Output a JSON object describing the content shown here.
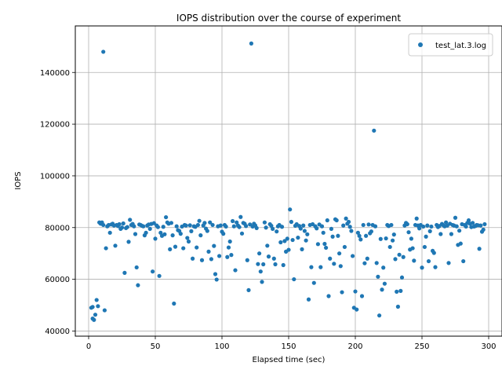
{
  "chart_data": {
    "type": "scatter",
    "title": "IOPS distribution over the course of experiment",
    "xlabel": "Elapsed time (sec)",
    "ylabel": "IOPS",
    "xlim": [
      -10,
      310
    ],
    "ylim": [
      38000,
      158000
    ],
    "xticks": [
      0,
      50,
      100,
      150,
      200,
      250,
      300
    ],
    "yticks": [
      40000,
      60000,
      80000,
      100000,
      120000,
      140000
    ],
    "grid": true,
    "legend_position": "top-right",
    "color": "#1f77b4",
    "series": [
      {
        "name": "test_lat.3.log",
        "points": [
          [
            2,
            49000
          ],
          [
            3,
            49300
          ],
          [
            3,
            44800
          ],
          [
            4,
            44300
          ],
          [
            5,
            46300
          ],
          [
            6,
            52000
          ],
          [
            7,
            49600
          ],
          [
            8,
            82000
          ],
          [
            9,
            81500
          ],
          [
            10,
            82000
          ],
          [
            11,
            81000
          ],
          [
            11,
            148000
          ],
          [
            12,
            48000
          ],
          [
            13,
            72000
          ],
          [
            14,
            80500
          ],
          [
            15,
            81000
          ],
          [
            16,
            78000
          ],
          [
            17,
            81200
          ],
          [
            18,
            81500
          ],
          [
            19,
            80800
          ],
          [
            20,
            73000
          ],
          [
            21,
            81000
          ],
          [
            22,
            80600
          ],
          [
            23,
            81300
          ],
          [
            24,
            79500
          ],
          [
            25,
            80000
          ],
          [
            26,
            81600
          ],
          [
            27,
            62500
          ],
          [
            28,
            79800
          ],
          [
            29,
            80200
          ],
          [
            30,
            74500
          ],
          [
            31,
            83000
          ],
          [
            32,
            81000
          ],
          [
            33,
            81400
          ],
          [
            34,
            80500
          ],
          [
            35,
            77500
          ],
          [
            36,
            64600
          ],
          [
            37,
            57700
          ],
          [
            38,
            81200
          ],
          [
            39,
            81000
          ],
          [
            40,
            80700
          ],
          [
            41,
            80500
          ],
          [
            42,
            77000
          ],
          [
            43,
            78000
          ],
          [
            44,
            80800
          ],
          [
            45,
            81200
          ],
          [
            46,
            79500
          ],
          [
            47,
            81400
          ],
          [
            48,
            63000
          ],
          [
            49,
            81700
          ],
          [
            50,
            75700
          ],
          [
            51,
            80800
          ],
          [
            52,
            80200
          ],
          [
            53,
            61300
          ],
          [
            54,
            78000
          ],
          [
            55,
            76800
          ],
          [
            56,
            80300
          ],
          [
            57,
            77400
          ],
          [
            58,
            84000
          ],
          [
            59,
            82000
          ],
          [
            60,
            81500
          ],
          [
            61,
            71600
          ],
          [
            62,
            81800
          ],
          [
            63,
            77000
          ],
          [
            64,
            50600
          ],
          [
            65,
            72600
          ],
          [
            66,
            80500
          ],
          [
            67,
            79000
          ],
          [
            68,
            78700
          ],
          [
            69,
            77600
          ],
          [
            70,
            80400
          ],
          [
            71,
            72000
          ],
          [
            72,
            81000
          ],
          [
            73,
            80800
          ],
          [
            74,
            76000
          ],
          [
            75,
            74600
          ],
          [
            76,
            80900
          ],
          [
            77,
            78600
          ],
          [
            78,
            68000
          ],
          [
            79,
            80500
          ],
          [
            80,
            80300
          ],
          [
            81,
            72300
          ],
          [
            82,
            81000
          ],
          [
            83,
            82600
          ],
          [
            84,
            77000
          ],
          [
            85,
            67400
          ],
          [
            86,
            80800
          ],
          [
            87,
            81800
          ],
          [
            88,
            79600
          ],
          [
            89,
            78700
          ],
          [
            90,
            70700
          ],
          [
            91,
            82000
          ],
          [
            92,
            67800
          ],
          [
            93,
            81000
          ],
          [
            94,
            72900
          ],
          [
            95,
            62000
          ],
          [
            96,
            59900
          ],
          [
            97,
            80500
          ],
          [
            98,
            69000
          ],
          [
            99,
            80800
          ],
          [
            100,
            78400
          ],
          [
            101,
            77600
          ],
          [
            102,
            81000
          ],
          [
            103,
            80400
          ],
          [
            104,
            68600
          ],
          [
            105,
            72300
          ],
          [
            106,
            74600
          ],
          [
            107,
            69400
          ],
          [
            108,
            82500
          ],
          [
            109,
            80500
          ],
          [
            110,
            63500
          ],
          [
            111,
            82000
          ],
          [
            112,
            80800
          ],
          [
            113,
            80200
          ],
          [
            114,
            84100
          ],
          [
            115,
            77700
          ],
          [
            116,
            81800
          ],
          [
            117,
            81500
          ],
          [
            118,
            80600
          ],
          [
            119,
            67400
          ],
          [
            120,
            55800
          ],
          [
            121,
            81200
          ],
          [
            122,
            151200
          ],
          [
            123,
            80400
          ],
          [
            124,
            81500
          ],
          [
            125,
            80800
          ],
          [
            126,
            79800
          ],
          [
            127,
            65900
          ],
          [
            128,
            70000
          ],
          [
            129,
            63000
          ],
          [
            130,
            59000
          ],
          [
            131,
            65800
          ],
          [
            132,
            82000
          ],
          [
            133,
            80000
          ],
          [
            134,
            73000
          ],
          [
            135,
            68800
          ],
          [
            136,
            81300
          ],
          [
            137,
            80700
          ],
          [
            138,
            79500
          ],
          [
            139,
            68000
          ],
          [
            140,
            65800
          ],
          [
            141,
            78500
          ],
          [
            142,
            80500
          ],
          [
            143,
            81000
          ],
          [
            144,
            74300
          ],
          [
            145,
            80300
          ],
          [
            146,
            65500
          ],
          [
            147,
            74800
          ],
          [
            148,
            70700
          ],
          [
            149,
            75700
          ],
          [
            150,
            71400
          ],
          [
            151,
            87000
          ],
          [
            152,
            82200
          ],
          [
            153,
            75200
          ],
          [
            154,
            60000
          ],
          [
            155,
            80700
          ],
          [
            156,
            81300
          ],
          [
            157,
            76100
          ],
          [
            158,
            80600
          ],
          [
            159,
            79600
          ],
          [
            160,
            71600
          ],
          [
            161,
            80800
          ],
          [
            162,
            78700
          ],
          [
            163,
            75000
          ],
          [
            164,
            77400
          ],
          [
            165,
            52200
          ],
          [
            166,
            81000
          ],
          [
            167,
            64700
          ],
          [
            168,
            81300
          ],
          [
            169,
            58600
          ],
          [
            170,
            80500
          ],
          [
            171,
            79700
          ],
          [
            172,
            73600
          ],
          [
            173,
            81200
          ],
          [
            174,
            64700
          ],
          [
            175,
            80500
          ],
          [
            176,
            78000
          ],
          [
            177,
            73700
          ],
          [
            178,
            72200
          ],
          [
            179,
            82800
          ],
          [
            180,
            53500
          ],
          [
            181,
            68000
          ],
          [
            182,
            79500
          ],
          [
            183,
            76500
          ],
          [
            184,
            66000
          ],
          [
            185,
            83200
          ],
          [
            186,
            82800
          ],
          [
            187,
            76800
          ],
          [
            188,
            70000
          ],
          [
            189,
            65100
          ],
          [
            190,
            55000
          ],
          [
            191,
            80800
          ],
          [
            192,
            72500
          ],
          [
            193,
            83500
          ],
          [
            194,
            81500
          ],
          [
            195,
            82200
          ],
          [
            196,
            80300
          ],
          [
            197,
            78700
          ],
          [
            198,
            69000
          ],
          [
            199,
            49000
          ],
          [
            200,
            55300
          ],
          [
            201,
            48300
          ],
          [
            202,
            78000
          ],
          [
            203,
            76800
          ],
          [
            204,
            75400
          ],
          [
            205,
            53500
          ],
          [
            206,
            81000
          ],
          [
            207,
            66200
          ],
          [
            208,
            76800
          ],
          [
            209,
            68000
          ],
          [
            210,
            81200
          ],
          [
            211,
            77800
          ],
          [
            212,
            78500
          ],
          [
            213,
            81000
          ],
          [
            214,
            117500
          ],
          [
            215,
            80500
          ],
          [
            216,
            66300
          ],
          [
            217,
            61000
          ],
          [
            218,
            46000
          ],
          [
            219,
            75600
          ],
          [
            220,
            56000
          ],
          [
            221,
            64500
          ],
          [
            222,
            58300
          ],
          [
            223,
            75800
          ],
          [
            224,
            81000
          ],
          [
            225,
            80600
          ],
          [
            226,
            72500
          ],
          [
            227,
            81000
          ],
          [
            228,
            75000
          ],
          [
            229,
            77300
          ],
          [
            230,
            67800
          ],
          [
            231,
            55200
          ],
          [
            232,
            49400
          ],
          [
            233,
            69500
          ],
          [
            234,
            55500
          ],
          [
            235,
            60700
          ],
          [
            236,
            68600
          ],
          [
            237,
            80800
          ],
          [
            238,
            81800
          ],
          [
            239,
            81300
          ],
          [
            240,
            78200
          ],
          [
            241,
            71500
          ],
          [
            242,
            75700
          ],
          [
            243,
            72000
          ],
          [
            244,
            67200
          ],
          [
            245,
            81000
          ],
          [
            246,
            83500
          ],
          [
            247,
            80800
          ],
          [
            248,
            79700
          ],
          [
            249,
            81000
          ],
          [
            250,
            64500
          ],
          [
            251,
            80400
          ],
          [
            252,
            72500
          ],
          [
            253,
            76500
          ],
          [
            254,
            80800
          ],
          [
            255,
            67000
          ],
          [
            256,
            78600
          ],
          [
            257,
            80400
          ],
          [
            258,
            71000
          ],
          [
            259,
            70200
          ],
          [
            260,
            64700
          ],
          [
            261,
            81000
          ],
          [
            262,
            80200
          ],
          [
            263,
            80600
          ],
          [
            264,
            77500
          ],
          [
            265,
            81400
          ],
          [
            266,
            80900
          ],
          [
            267,
            80500
          ],
          [
            268,
            82000
          ],
          [
            269,
            80800
          ],
          [
            270,
            66300
          ],
          [
            271,
            81500
          ],
          [
            272,
            77500
          ],
          [
            273,
            81000
          ],
          [
            274,
            80800
          ],
          [
            275,
            83800
          ],
          [
            276,
            80500
          ],
          [
            277,
            73300
          ],
          [
            278,
            78800
          ],
          [
            279,
            73800
          ],
          [
            280,
            81300
          ],
          [
            281,
            67000
          ],
          [
            282,
            81000
          ],
          [
            283,
            80400
          ],
          [
            284,
            81800
          ],
          [
            285,
            82800
          ],
          [
            286,
            81500
          ],
          [
            287,
            80200
          ],
          [
            288,
            81800
          ],
          [
            289,
            80400
          ],
          [
            290,
            80600
          ],
          [
            291,
            81000
          ],
          [
            292,
            80900
          ],
          [
            293,
            71800
          ],
          [
            294,
            80800
          ],
          [
            295,
            78400
          ],
          [
            296,
            79200
          ],
          [
            297,
            81300
          ]
        ]
      }
    ]
  }
}
